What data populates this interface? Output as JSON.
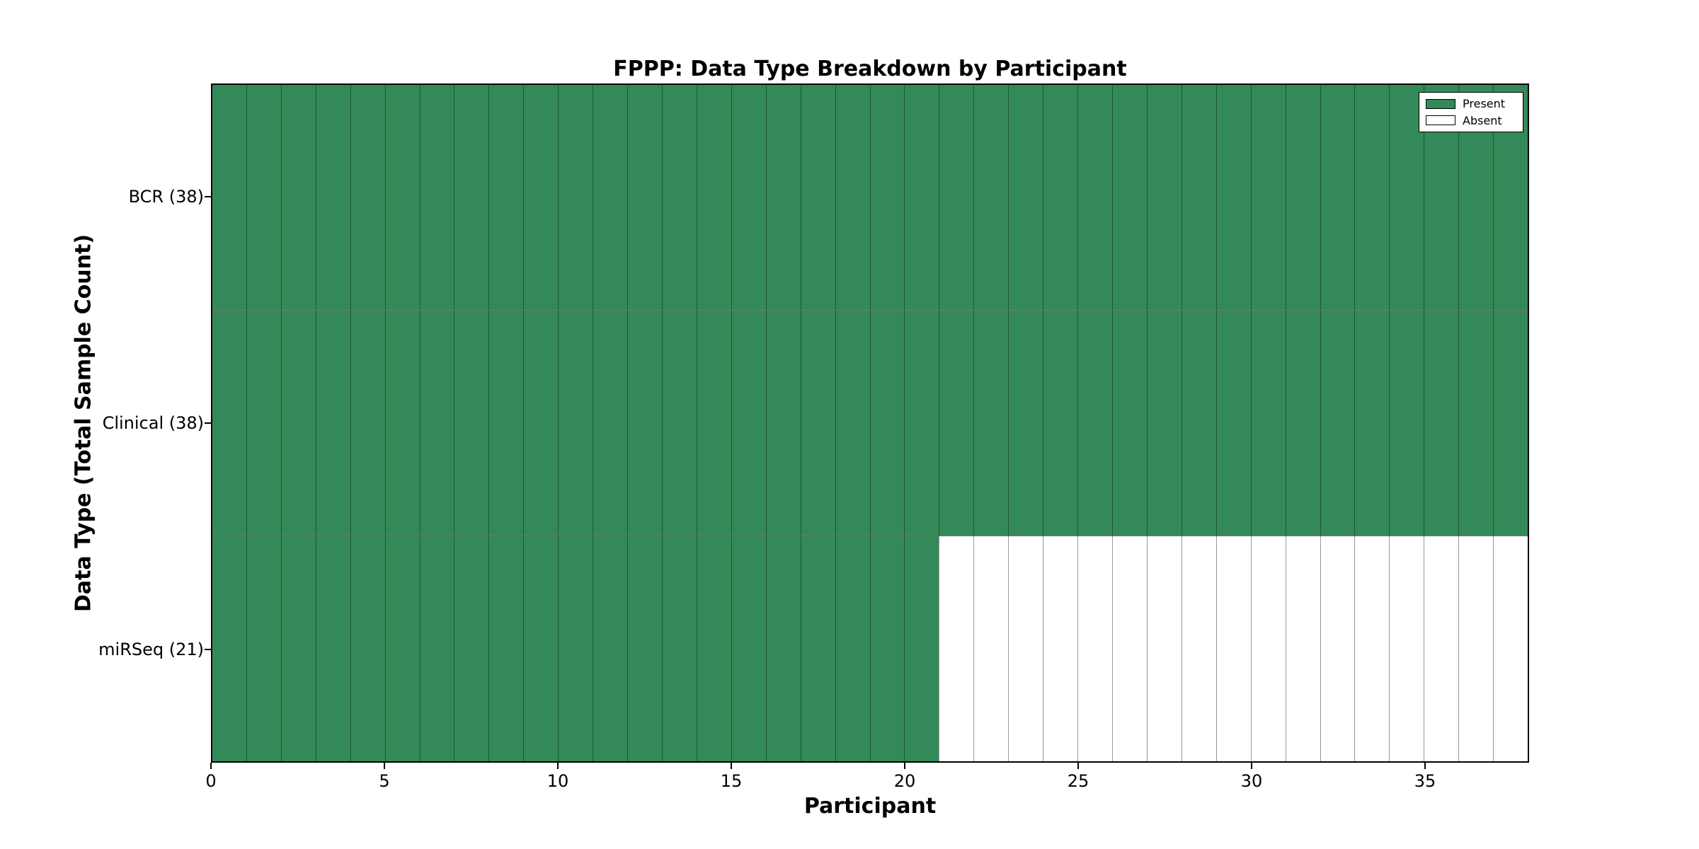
{
  "title": "FPPP: Data Type Breakdown by Participant",
  "chart_data": {
    "type": "heatmap",
    "title": "FPPP: Data Type Breakdown by Participant",
    "xlabel": "Participant",
    "ylabel": "Data Type (Total Sample Count)",
    "x_range": [
      0,
      38
    ],
    "n_participants": 38,
    "x_ticks": [
      0,
      5,
      10,
      15,
      20,
      25,
      30,
      35
    ],
    "grid": "cell-borders",
    "legend_position": "upper right",
    "legend_entries": [
      {
        "label": "Present",
        "color": "#338A58"
      },
      {
        "label": "Absent",
        "color": "#ffffff"
      }
    ],
    "colors": {
      "present": "#338A58",
      "absent": "#ffffff",
      "cell_edge": "rgba(0,0,0,0.40)",
      "spine": "#000000"
    },
    "rows": [
      {
        "label": "BCR (38)",
        "data_type": "BCR",
        "total_samples": 38,
        "present_count": 38,
        "values": [
          1,
          1,
          1,
          1,
          1,
          1,
          1,
          1,
          1,
          1,
          1,
          1,
          1,
          1,
          1,
          1,
          1,
          1,
          1,
          1,
          1,
          1,
          1,
          1,
          1,
          1,
          1,
          1,
          1,
          1,
          1,
          1,
          1,
          1,
          1,
          1,
          1,
          1
        ]
      },
      {
        "label": "Clinical (38)",
        "data_type": "Clinical",
        "total_samples": 38,
        "present_count": 38,
        "values": [
          1,
          1,
          1,
          1,
          1,
          1,
          1,
          1,
          1,
          1,
          1,
          1,
          1,
          1,
          1,
          1,
          1,
          1,
          1,
          1,
          1,
          1,
          1,
          1,
          1,
          1,
          1,
          1,
          1,
          1,
          1,
          1,
          1,
          1,
          1,
          1,
          1,
          1
        ]
      },
      {
        "label": "miRSeq (21)",
        "data_type": "miRSeq",
        "total_samples": 21,
        "present_count": 21,
        "values": [
          1,
          1,
          1,
          1,
          1,
          1,
          1,
          1,
          1,
          1,
          1,
          1,
          1,
          1,
          1,
          1,
          1,
          1,
          1,
          1,
          1,
          0,
          0,
          0,
          0,
          0,
          0,
          0,
          0,
          0,
          0,
          0,
          0,
          0,
          0,
          0,
          0,
          0
        ]
      }
    ]
  }
}
